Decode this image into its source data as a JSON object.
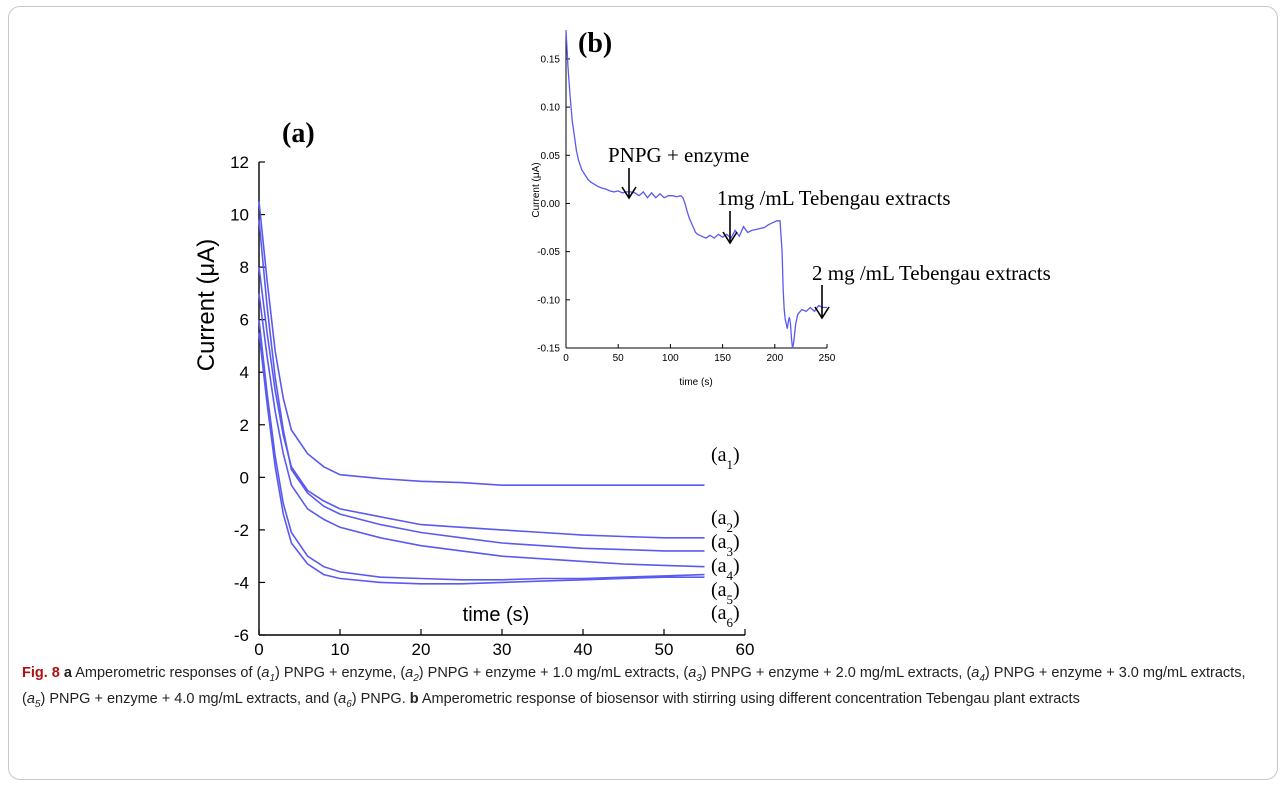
{
  "chart_data": [
    {
      "panel": "(a)",
      "type": "line",
      "xlabel": "time (s)",
      "ylabel": "Current (μA)",
      "xlim": [
        0,
        60
      ],
      "ylim": [
        -6,
        12
      ],
      "xticks": [
        0,
        10,
        20,
        30,
        40,
        50,
        60
      ],
      "yticks": [
        -6,
        -4,
        -2,
        0,
        2,
        4,
        6,
        8,
        10,
        12
      ],
      "grid": false,
      "color": "#5a5af0",
      "series": [
        {
          "name": "(a1)",
          "x": [
            0,
            1,
            2,
            3,
            4,
            6,
            8,
            10,
            15,
            20,
            25,
            30,
            35,
            40,
            45,
            50,
            55
          ],
          "y": [
            10.5,
            7.5,
            4.8,
            3.0,
            1.8,
            0.9,
            0.4,
            0.1,
            -0.05,
            -0.15,
            -0.2,
            -0.3,
            -0.3,
            -0.3,
            -0.3,
            -0.3,
            -0.3
          ]
        },
        {
          "name": "(a2)",
          "x": [
            0,
            1,
            2,
            3,
            4,
            6,
            8,
            10,
            15,
            20,
            25,
            30,
            35,
            40,
            45,
            50,
            55
          ],
          "y": [
            8.0,
            5.5,
            3.3,
            1.6,
            0.4,
            -0.5,
            -0.9,
            -1.2,
            -1.5,
            -1.8,
            -1.9,
            -2.0,
            -2.1,
            -2.2,
            -2.25,
            -2.3,
            -2.3
          ]
        },
        {
          "name": "(a3)",
          "x": [
            0,
            1,
            2,
            3,
            4,
            6,
            8,
            10,
            15,
            20,
            25,
            30,
            35,
            40,
            45,
            50,
            55
          ],
          "y": [
            9.8,
            6.5,
            3.8,
            1.8,
            0.3,
            -0.6,
            -1.1,
            -1.4,
            -1.8,
            -2.1,
            -2.3,
            -2.5,
            -2.6,
            -2.7,
            -2.75,
            -2.8,
            -2.8
          ]
        },
        {
          "name": "(a4)",
          "x": [
            0,
            1,
            2,
            3,
            4,
            6,
            8,
            10,
            15,
            20,
            25,
            30,
            35,
            40,
            45,
            50,
            55
          ],
          "y": [
            7.0,
            4.6,
            2.5,
            0.9,
            -0.3,
            -1.2,
            -1.6,
            -1.9,
            -2.3,
            -2.6,
            -2.8,
            -3.0,
            -3.1,
            -3.2,
            -3.3,
            -3.35,
            -3.4
          ]
        },
        {
          "name": "(a5)",
          "x": [
            0,
            1,
            2,
            3,
            4,
            6,
            8,
            10,
            15,
            20,
            25,
            30,
            35,
            40,
            45,
            50,
            55
          ],
          "y": [
            6.0,
            3.2,
            0.8,
            -1.0,
            -2.1,
            -3.0,
            -3.4,
            -3.6,
            -3.8,
            -3.85,
            -3.9,
            -3.9,
            -3.85,
            -3.85,
            -3.8,
            -3.75,
            -3.7
          ]
        },
        {
          "name": "(a6)",
          "x": [
            0,
            1,
            2,
            3,
            4,
            6,
            8,
            10,
            15,
            20,
            25,
            30,
            35,
            40,
            45,
            50,
            55
          ],
          "y": [
            5.5,
            2.8,
            0.4,
            -1.4,
            -2.5,
            -3.3,
            -3.7,
            -3.85,
            -4.0,
            -4.05,
            -4.05,
            -4.0,
            -3.95,
            -3.9,
            -3.85,
            -3.8,
            -3.8
          ]
        }
      ]
    },
    {
      "panel": "(b)",
      "type": "line",
      "xlabel": "time (s)",
      "ylabel": "Current (μA)",
      "xlim": [
        0,
        250
      ],
      "ylim": [
        -0.15,
        0.18
      ],
      "xticks": [
        0,
        50,
        100,
        150,
        200,
        250
      ],
      "yticks": [
        -0.15,
        -0.1,
        -0.05,
        0.0,
        0.05,
        0.1,
        0.15
      ],
      "ytick_labels": [
        "-0.15",
        "-0.10",
        "-0.05",
        "0.00",
        "0.05",
        "0.10",
        "0.15"
      ],
      "grid": false,
      "color": "#5a5af0",
      "series": [
        {
          "x": [
            0,
            2,
            4,
            6,
            8,
            10,
            12,
            15,
            18,
            21,
            24,
            27,
            30,
            34,
            38,
            42,
            46,
            50,
            54,
            58,
            62,
            66,
            70,
            74,
            78,
            82,
            86,
            90,
            94,
            98,
            102,
            106,
            110,
            112,
            114,
            116,
            118,
            120,
            122,
            124,
            126,
            128,
            130,
            134,
            138,
            142,
            146,
            150,
            154,
            158,
            162,
            166,
            170,
            174,
            178,
            182,
            186,
            190,
            194,
            198,
            202,
            205,
            207,
            208,
            209,
            210,
            211,
            212,
            213,
            214,
            215,
            216,
            217,
            218,
            220,
            222,
            226,
            230,
            234,
            238,
            242,
            246,
            250
          ],
          "y": [
            0.18,
            0.14,
            0.11,
            0.085,
            0.07,
            0.055,
            0.045,
            0.035,
            0.03,
            0.025,
            0.022,
            0.02,
            0.018,
            0.016,
            0.015,
            0.013,
            0.012,
            0.013,
            0.011,
            0.012,
            0.012,
            0.011,
            0.008,
            0.012,
            0.006,
            0.011,
            0.006,
            0.01,
            0.006,
            0.008,
            0.008,
            0.007,
            0.008,
            0.006,
            0.0,
            -0.008,
            -0.015,
            -0.02,
            -0.025,
            -0.03,
            -0.032,
            -0.033,
            -0.034,
            -0.036,
            -0.033,
            -0.036,
            -0.032,
            -0.035,
            -0.032,
            -0.036,
            -0.028,
            -0.034,
            -0.024,
            -0.03,
            -0.028,
            -0.027,
            -0.026,
            -0.025,
            -0.022,
            -0.02,
            -0.018,
            -0.018,
            -0.05,
            -0.09,
            -0.11,
            -0.12,
            -0.125,
            -0.13,
            -0.122,
            -0.118,
            -0.125,
            -0.14,
            -0.15,
            -0.145,
            -0.125,
            -0.115,
            -0.11,
            -0.112,
            -0.108,
            -0.112,
            -0.106,
            -0.108,
            -0.108
          ]
        }
      ],
      "annotations": [
        {
          "text": "PNPG + enzyme",
          "x": 60,
          "y": 0.015
        },
        {
          "text": "1mg /mL Tebengau extracts",
          "x": 155,
          "y": -0.03
        },
        {
          "text": "2 mg /mL Tebengau extracts",
          "x": 245,
          "y": -0.107
        }
      ]
    }
  ],
  "labels": {
    "panel_a": "(a)",
    "panel_b": "(b)",
    "a_series": [
      {
        "base": "(a",
        "sub": "1",
        "close": ")"
      },
      {
        "base": "(a",
        "sub": "2",
        "close": ")"
      },
      {
        "base": "(a",
        "sub": "3",
        "close": ")"
      },
      {
        "base": "(a",
        "sub": "4",
        "close": ")"
      },
      {
        "base": "(a",
        "sub": "5",
        "close": ")"
      },
      {
        "base": "(a",
        "sub": "6",
        "close": ")"
      }
    ]
  },
  "caption": {
    "fig_label": "Fig. 8",
    "a_label": "a",
    "b_label": "b",
    "text_a": [
      {
        "pre": " Amperometric responses of (",
        "var": "a",
        "sub": "1",
        "post": ") PNPG + enzyme, ("
      },
      {
        "pre": "",
        "var": "a",
        "sub": "2",
        "post": ") PNPG + enzyme + 1.0 mg/mL extracts, ("
      },
      {
        "pre": "",
        "var": "a",
        "sub": "3",
        "post": ") PNPG + enzyme + 2.0 mg/mL extracts, ("
      },
      {
        "pre": "",
        "var": "a",
        "sub": "4",
        "post": ") PNPG + enzyme + 3.0 mg/mL extracts, ("
      },
      {
        "pre": "",
        "var": "a",
        "sub": "5",
        "post": ") PNPG + enzyme + 4.0 mg/mL extracts, and ("
      },
      {
        "pre": "",
        "var": "a",
        "sub": "6",
        "post": ") PNPG. "
      }
    ],
    "text_b": " Amperometric response of biosensor with stirring using different concentration Tebengau plant extracts"
  }
}
